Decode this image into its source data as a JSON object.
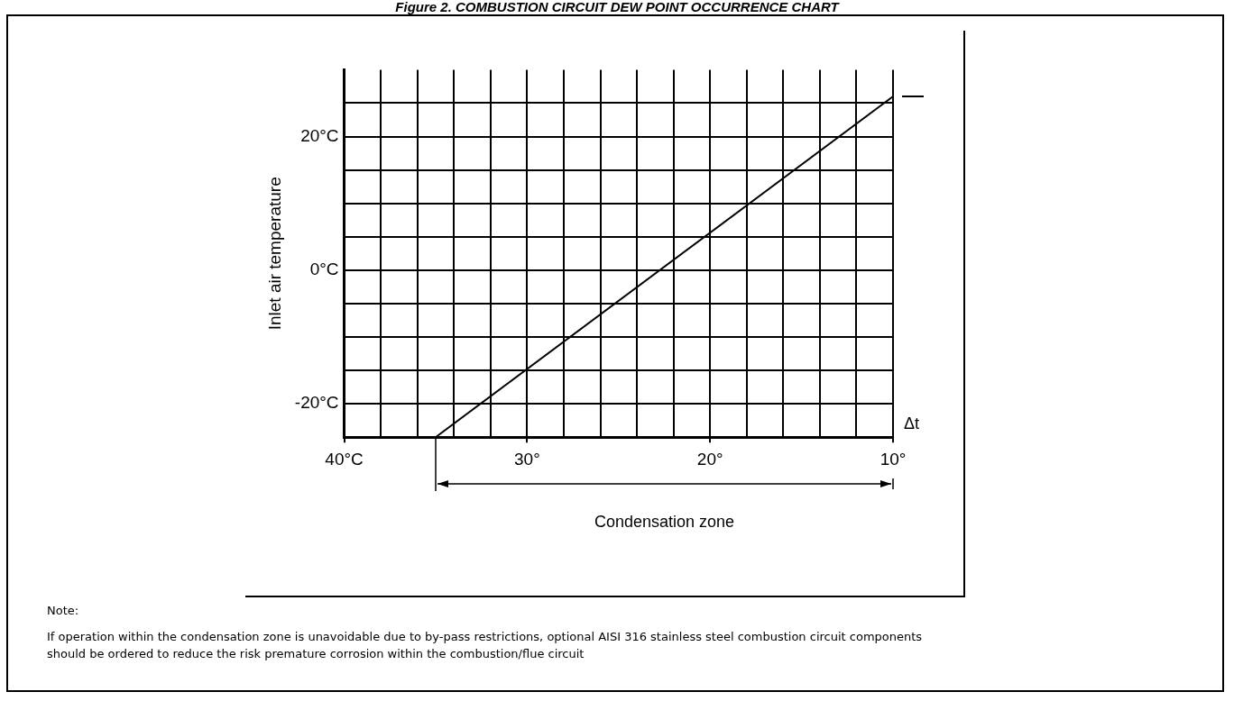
{
  "chart_data": {
    "type": "line",
    "title": "Figure 2. COMBUSTION CIRCUIT DEW POINT OCCURRENCE CHART",
    "xlabel": "Δt",
    "ylabel": "Inlet air temperature",
    "x": [
      35,
      10
    ],
    "series": [
      {
        "color": "#000000",
        "values": [
          -25,
          26
        ]
      }
    ],
    "xlim": [
      40,
      10
    ],
    "xticks": [
      {
        "value": 40,
        "label": "40°C"
      },
      {
        "value": 38,
        "label": null
      },
      {
        "value": 36,
        "label": null
      },
      {
        "value": 34,
        "label": null
      },
      {
        "value": 32,
        "label": null
      },
      {
        "value": 30,
        "label": "30°"
      },
      {
        "value": 28,
        "label": null
      },
      {
        "value": 26,
        "label": null
      },
      {
        "value": 24,
        "label": null
      },
      {
        "value": 22,
        "label": null
      },
      {
        "value": 20,
        "label": "20°"
      },
      {
        "value": 18,
        "label": null
      },
      {
        "value": 16,
        "label": null
      },
      {
        "value": 14,
        "label": null
      },
      {
        "value": 12,
        "label": null
      },
      {
        "value": 10,
        "label": "10°"
      }
    ],
    "ylim": [
      -25,
      30
    ],
    "yticks": [
      {
        "value": -20,
        "label": "-20°C"
      },
      {
        "value": -15,
        "label": null
      },
      {
        "value": -10,
        "label": null
      },
      {
        "value": -5,
        "label": null
      },
      {
        "value": 0,
        "label": "0°C"
      },
      {
        "value": 5,
        "label": null
      },
      {
        "value": 10,
        "label": null
      },
      {
        "value": 15,
        "label": null
      },
      {
        "value": 20,
        "label": "20°C"
      },
      {
        "value": 25,
        "label": null
      }
    ],
    "grid": true,
    "legend": false,
    "marker": "none",
    "line_style": "solid",
    "annotations": [
      "Condensation zone",
      "Note:",
      "If operation within the condensation zone is unavoidable due to by-pass restrictions, optional AISI 316 stainless steel combustion circuit components should be ordered to reduce the risk premature corrosion within the combustion/flue circuit"
    ]
  }
}
